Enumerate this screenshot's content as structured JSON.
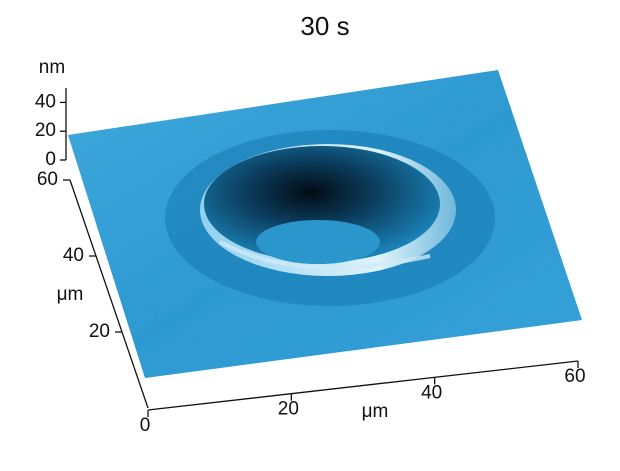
{
  "chart_data": {
    "type": "surface3d",
    "title": "30 s",
    "xlabel": "μm",
    "ylabel": "μm",
    "zlabel": "nm",
    "xlim": [
      0,
      60
    ],
    "xticks": [
      0,
      20,
      40,
      60
    ],
    "ylim": [
      0,
      60
    ],
    "yticks": [
      20,
      40,
      60
    ],
    "zlim": [
      0,
      50
    ],
    "zticks": [
      0,
      20,
      40
    ],
    "color": "#2a9fd8"
  }
}
